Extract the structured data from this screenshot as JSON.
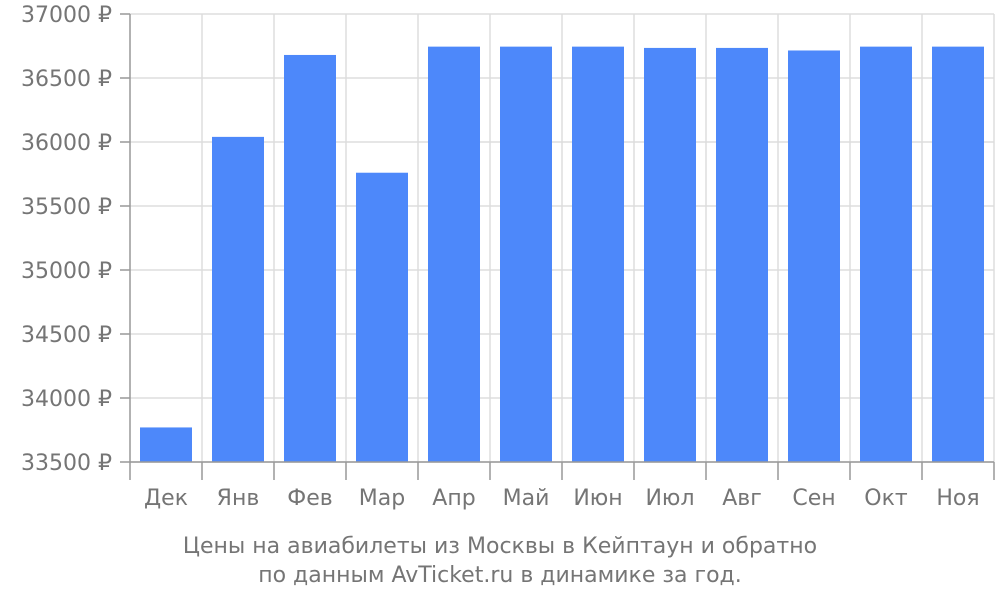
{
  "chart_data": {
    "type": "bar",
    "categories": [
      "Дек",
      "Янв",
      "Фев",
      "Мар",
      "Апр",
      "Май",
      "Июн",
      "Июл",
      "Авг",
      "Сен",
      "Окт",
      "Ноя"
    ],
    "values": [
      33770,
      36040,
      36680,
      35760,
      36745,
      36745,
      36745,
      36735,
      36735,
      36715,
      36745,
      36745
    ],
    "ylim": [
      33500,
      37000
    ],
    "yticks": [
      33500,
      34000,
      34500,
      35000,
      35500,
      36000,
      36500,
      37000
    ],
    "ytick_suffix": " ₽",
    "grid": true,
    "bar_color": "#4d88fa",
    "grid_color": "#dddddd",
    "axis_color": "#999999",
    "label_color": "#757575"
  },
  "caption": {
    "line1": "Цены на авиабилеты из Москвы в Кейптаун и обратно",
    "line2": "по данным AvTicket.ru в динамике за год."
  }
}
